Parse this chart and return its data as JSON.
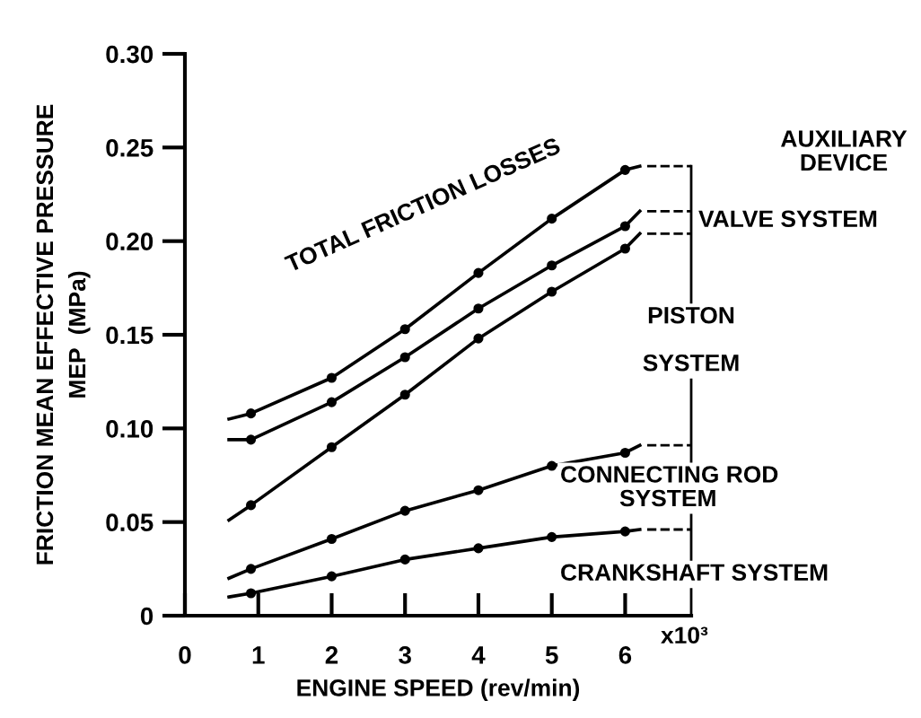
{
  "chart_data": {
    "type": "line",
    "xlabel": "ENGINE SPEED (rev/min)",
    "ylabel": "FRICTION MEAN EFFECTIVE PRESSURE\nMEP  (MPa)",
    "xlim": [
      0,
      6.9
    ],
    "xticks": [
      0,
      1,
      2,
      3,
      4,
      5,
      6
    ],
    "ylim": [
      0,
      0.3
    ],
    "yticks": [
      {
        "value": 0,
        "label": "0"
      },
      {
        "value": 0.05,
        "label": "0.05"
      },
      {
        "value": 0.1,
        "label": "0.10"
      },
      {
        "value": 0.15,
        "label": "0.15"
      },
      {
        "value": 0.2,
        "label": "0.20"
      },
      {
        "value": 0.25,
        "label": "0.25"
      },
      {
        "value": 0.3,
        "label": "0.30"
      }
    ],
    "grid": false,
    "legend": false,
    "marker": "circle",
    "line_style": "solid",
    "x": [
      0.6,
      0.9,
      2,
      3,
      4,
      5,
      6,
      6.2
    ],
    "series": [
      {
        "color": "#000000",
        "values": [
          0.105,
          0.108,
          0.127,
          0.153,
          0.183,
          0.212,
          0.238,
          0.24
        ]
      },
      {
        "color": "#000000",
        "values": [
          0.094,
          0.094,
          0.114,
          0.138,
          0.164,
          0.187,
          0.208,
          0.216
        ]
      },
      {
        "color": "#000000",
        "values": [
          0.051,
          0.059,
          0.09,
          0.118,
          0.148,
          0.173,
          0.196,
          0.204
        ]
      },
      {
        "color": "#000000",
        "values": [
          0.02,
          0.025,
          0.041,
          0.056,
          0.067,
          0.08,
          0.087,
          0.091
        ]
      },
      {
        "color": "#000000",
        "values": [
          0.01,
          0.012,
          0.021,
          0.03,
          0.036,
          0.042,
          0.045,
          0.046
        ]
      }
    ],
    "annotations": [
      "TOTAL FRICTION LOSSES",
      "AUXILIARY\nDEVICE",
      "VALVE SYSTEM",
      "PISTON\n\nSYSTEM",
      "CONNECTING ROD\n         SYSTEM",
      "CRANKSHAFT SYSTEM",
      "x10³"
    ]
  }
}
